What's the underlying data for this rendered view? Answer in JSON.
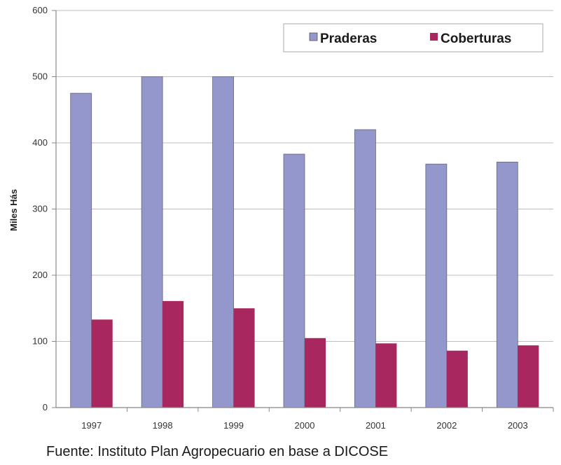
{
  "chart_data": {
    "type": "bar",
    "categories": [
      "1997",
      "1998",
      "1999",
      "2000",
      "2001",
      "2002",
      "2003"
    ],
    "series": [
      {
        "name": "Praderas",
        "values": [
          475,
          500,
          500,
          383,
          420,
          368,
          371
        ],
        "color": "#9497cc"
      },
      {
        "name": "Coberturas",
        "values": [
          133,
          161,
          150,
          105,
          97,
          86,
          94
        ],
        "color": "#a8275e"
      }
    ],
    "ylabel": "Miles Hás",
    "ylim": [
      0,
      600
    ],
    "yticks": [
      0,
      100,
      200,
      300,
      400,
      500,
      600
    ],
    "grid": true,
    "legend": "top-right"
  },
  "source": "Fuente: Instituto Plan Agropecuario en base a DICOSE"
}
